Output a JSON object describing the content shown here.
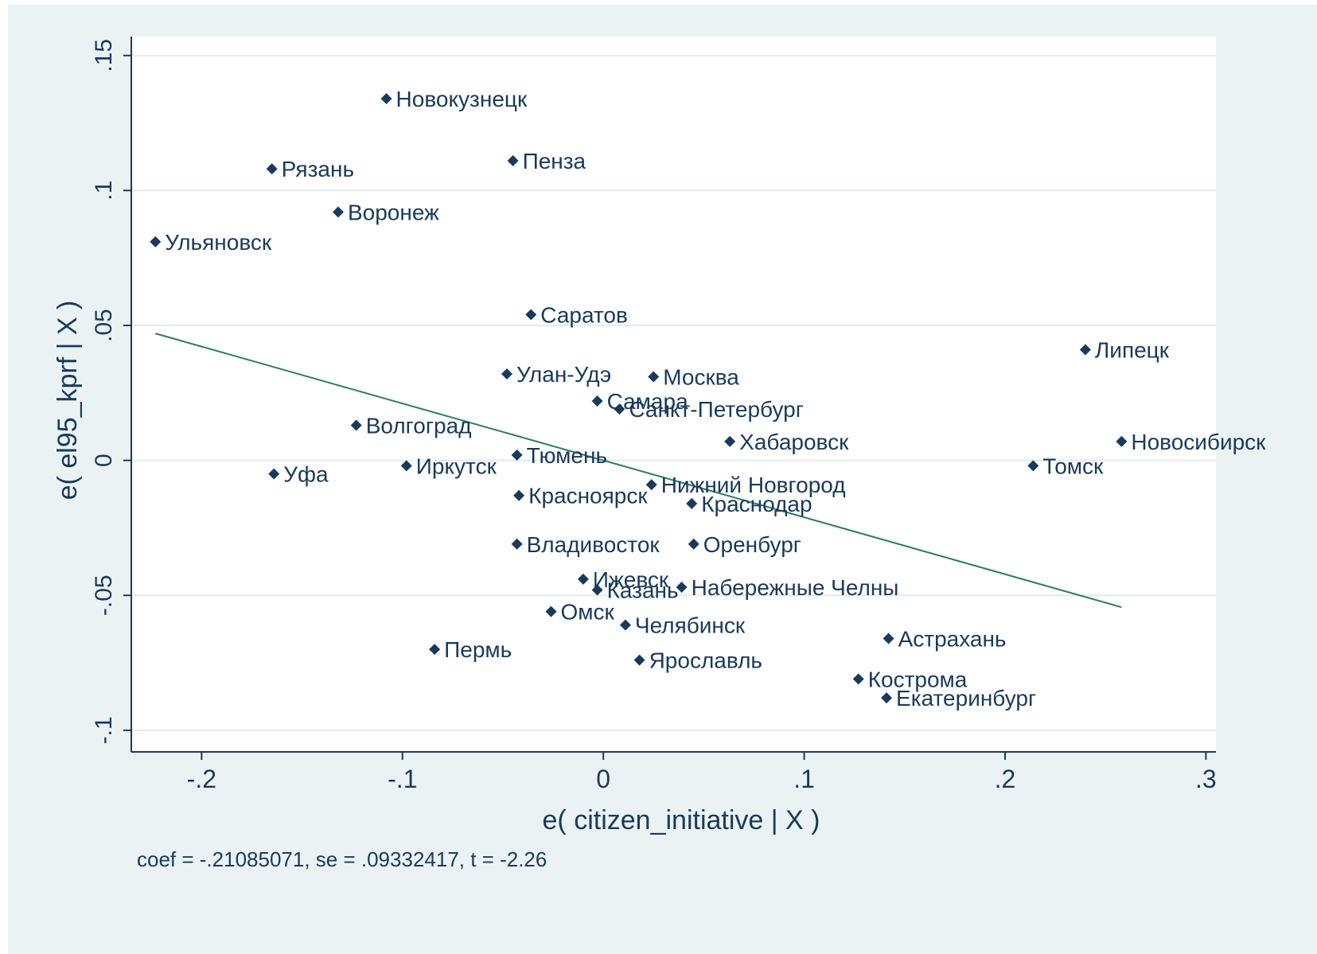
{
  "chart_data": {
    "type": "scatter",
    "xlabel": "e( citizen_initiative | X )",
    "ylabel": "e( el95_kprf | X )",
    "xlim": [
      -0.235,
      0.305
    ],
    "ylim": [
      -0.108,
      0.157
    ],
    "x_ticks": [
      -0.2,
      -0.1,
      0,
      0.1,
      0.2,
      0.3
    ],
    "x_tick_labels": [
      "-.2",
      "-.1",
      "0",
      ".1",
      ".2",
      ".3"
    ],
    "y_ticks": [
      -0.1,
      -0.05,
      0,
      0.05,
      0.1,
      0.15
    ],
    "y_tick_labels": [
      "-.1",
      "-.05",
      "0",
      ".05",
      ".1",
      ".15"
    ],
    "grid": true,
    "note": "coef = -.21085071, se = .09332417, t = -2.26",
    "fit_line": {
      "slope": -0.21085071,
      "x_range": [
        -0.223,
        0.258
      ]
    },
    "colors": {
      "background": "#eaf2f3",
      "plot_area": "#ffffff",
      "marker": "#1a3a5c",
      "fit_line": "#2e7d5b",
      "text": "#1a3a5c"
    },
    "points": [
      {
        "label": "Новокузнецк",
        "x": -0.108,
        "y": 0.134
      },
      {
        "label": "Рязань",
        "x": -0.165,
        "y": 0.108
      },
      {
        "label": "Пенза",
        "x": -0.045,
        "y": 0.111
      },
      {
        "label": "Воронеж",
        "x": -0.132,
        "y": 0.092
      },
      {
        "label": "Ульяновск",
        "x": -0.223,
        "y": 0.081
      },
      {
        "label": "Саратов",
        "x": -0.036,
        "y": 0.054
      },
      {
        "label": "Липецк",
        "x": 0.24,
        "y": 0.041
      },
      {
        "label": "Улан-Удэ",
        "x": -0.048,
        "y": 0.032
      },
      {
        "label": "Москва",
        "x": 0.025,
        "y": 0.031
      },
      {
        "label": "Самара",
        "x": -0.003,
        "y": 0.022
      },
      {
        "label": "Санкт-Петербург",
        "x": 0.008,
        "y": 0.019
      },
      {
        "label": "Волгоград",
        "x": -0.123,
        "y": 0.013
      },
      {
        "label": "Хабаровск",
        "x": 0.063,
        "y": 0.007
      },
      {
        "label": "Новосибирск",
        "x": 0.258,
        "y": 0.007
      },
      {
        "label": "Тюмень",
        "x": -0.043,
        "y": 0.002
      },
      {
        "label": "Иркутск",
        "x": -0.098,
        "y": -0.002
      },
      {
        "label": "Томск",
        "x": 0.214,
        "y": -0.002
      },
      {
        "label": "Уфа",
        "x": -0.164,
        "y": -0.005
      },
      {
        "label": "Нижний Новгород",
        "x": 0.024,
        "y": -0.009
      },
      {
        "label": "Красноярск",
        "x": -0.042,
        "y": -0.013
      },
      {
        "label": "Краснодар",
        "x": 0.044,
        "y": -0.016
      },
      {
        "label": "Владивосток",
        "x": -0.043,
        "y": -0.031
      },
      {
        "label": "Оренбург",
        "x": 0.045,
        "y": -0.031
      },
      {
        "label": "Ижевск",
        "x": -0.01,
        "y": -0.044
      },
      {
        "label": "Казань",
        "x": -0.003,
        "y": -0.048
      },
      {
        "label": "Набережные Челны",
        "x": 0.039,
        "y": -0.047
      },
      {
        "label": "Омск",
        "x": -0.026,
        "y": -0.056
      },
      {
        "label": "Челябинск",
        "x": 0.011,
        "y": -0.061
      },
      {
        "label": "Астрахань",
        "x": 0.142,
        "y": -0.066
      },
      {
        "label": "Пермь",
        "x": -0.084,
        "y": -0.07
      },
      {
        "label": "Ярославль",
        "x": 0.018,
        "y": -0.074
      },
      {
        "label": "Кострома",
        "x": 0.127,
        "y": -0.081
      },
      {
        "label": "Екатеринбург",
        "x": 0.141,
        "y": -0.088
      }
    ]
  }
}
